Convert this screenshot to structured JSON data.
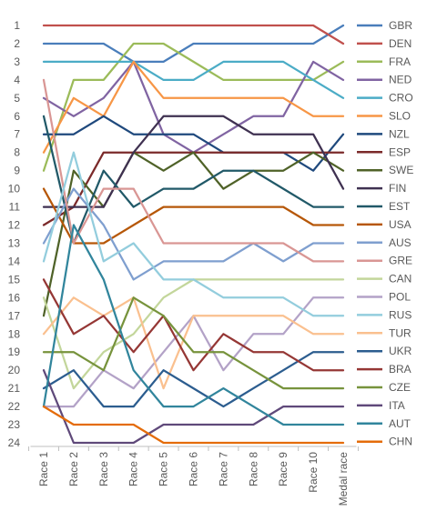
{
  "chart_data": {
    "type": "line",
    "title": "",
    "xlabel": "",
    "ylabel": "",
    "y_inverted": true,
    "ylim": [
      1,
      24
    ],
    "grid": false,
    "legend_position": "right",
    "categories": [
      "Race 1",
      "Race 2",
      "Race 3",
      "Race 4",
      "Race 5",
      "Race 6",
      "Race 7",
      "Race 8",
      "Race 9",
      "Race 10",
      "Medal race"
    ],
    "y_ticks": [
      1,
      2,
      3,
      4,
      5,
      6,
      7,
      8,
      9,
      10,
      11,
      12,
      13,
      14,
      15,
      16,
      17,
      18,
      19,
      20,
      21,
      22,
      23,
      24
    ],
    "series": [
      {
        "name": "GBR",
        "color": "#4a7ebb",
        "values": [
          2,
          2,
          2,
          3,
          3,
          2,
          2,
          2,
          2,
          2,
          1
        ]
      },
      {
        "name": "DEN",
        "color": "#c0504d",
        "values": [
          1,
          1,
          1,
          1,
          1,
          1,
          1,
          1,
          1,
          1,
          2
        ]
      },
      {
        "name": "FRA",
        "color": "#9bbb59",
        "values": [
          9,
          4,
          4,
          2,
          2,
          3,
          4,
          4,
          4,
          4,
          3
        ]
      },
      {
        "name": "NED",
        "color": "#8064a2",
        "values": [
          5,
          6,
          5,
          3,
          7,
          8,
          7,
          6,
          6,
          3,
          4
        ]
      },
      {
        "name": "CRO",
        "color": "#4bacc6",
        "values": [
          3,
          3,
          3,
          3,
          4,
          4,
          3,
          3,
          3,
          4,
          5
        ]
      },
      {
        "name": "SLO",
        "color": "#f79646",
        "values": [
          8,
          5,
          6,
          3,
          5,
          5,
          5,
          5,
          5,
          6,
          6
        ]
      },
      {
        "name": "NZL",
        "color": "#1f497d",
        "values": [
          7,
          7,
          6,
          7,
          7,
          7,
          8,
          8,
          8,
          9,
          7
        ]
      },
      {
        "name": "ESP",
        "color": "#7b2a2a",
        "values": [
          12,
          11,
          8,
          8,
          8,
          8,
          8,
          8,
          8,
          8,
          8
        ]
      },
      {
        "name": "SWE",
        "color": "#4f6228",
        "values": [
          17,
          9,
          11,
          8,
          9,
          8,
          10,
          9,
          9,
          8,
          9
        ]
      },
      {
        "name": "FIN",
        "color": "#3f3151",
        "values": [
          11,
          11,
          11,
          8,
          6,
          6,
          6,
          7,
          7,
          7,
          10
        ]
      },
      {
        "name": "EST",
        "color": "#215968",
        "values": [
          6,
          13,
          9,
          11,
          10,
          10,
          9,
          9,
          10,
          11,
          11
        ]
      },
      {
        "name": "USA",
        "color": "#b65708",
        "values": [
          10,
          13,
          13,
          12,
          11,
          11,
          11,
          11,
          11,
          12,
          12
        ]
      },
      {
        "name": "AUS",
        "color": "#7f9fcf",
        "values": [
          13,
          10,
          12,
          15,
          14,
          14,
          14,
          13,
          14,
          13,
          13
        ]
      },
      {
        "name": "GRE",
        "color": "#d99694",
        "values": [
          4,
          13,
          10,
          10,
          13,
          13,
          13,
          13,
          13,
          14,
          14
        ]
      },
      {
        "name": "CAN",
        "color": "#c3d69b",
        "values": [
          16,
          21,
          19,
          18,
          16,
          15,
          15,
          15,
          15,
          15,
          15
        ]
      },
      {
        "name": "POL",
        "color": "#b3a2c7",
        "values": [
          22,
          22,
          20,
          21,
          19,
          17,
          20,
          18,
          18,
          16,
          16
        ]
      },
      {
        "name": "RUS",
        "color": "#93cddd",
        "values": [
          14,
          8,
          14,
          13,
          15,
          15,
          16,
          16,
          16,
          17,
          17
        ]
      },
      {
        "name": "TUR",
        "color": "#fac08f",
        "values": [
          18,
          16,
          17,
          16,
          21,
          17,
          17,
          17,
          17,
          18,
          18
        ]
      },
      {
        "name": "UKR",
        "color": "#2c5d8f",
        "values": [
          21,
          20,
          22,
          22,
          20,
          21,
          22,
          21,
          20,
          19,
          19
        ]
      },
      {
        "name": "BRA",
        "color": "#953735",
        "values": [
          15,
          18,
          17,
          19,
          17,
          20,
          18,
          19,
          19,
          20,
          20
        ]
      },
      {
        "name": "CZE",
        "color": "#77933c",
        "values": [
          19,
          19,
          20,
          16,
          17,
          19,
          19,
          20,
          21,
          21,
          21
        ]
      },
      {
        "name": "ITA",
        "color": "#5f497a",
        "values": [
          20,
          24,
          24,
          24,
          23,
          23,
          23,
          23,
          22,
          22,
          22
        ]
      },
      {
        "name": "AUT",
        "color": "#31859c",
        "values": [
          22,
          12,
          15,
          20,
          22,
          22,
          21,
          22,
          23,
          23,
          23
        ]
      },
      {
        "name": "CHN",
        "color": "#e46c0a",
        "values": [
          22,
          23,
          23,
          23,
          24,
          24,
          24,
          24,
          24,
          24,
          24
        ]
      }
    ]
  }
}
